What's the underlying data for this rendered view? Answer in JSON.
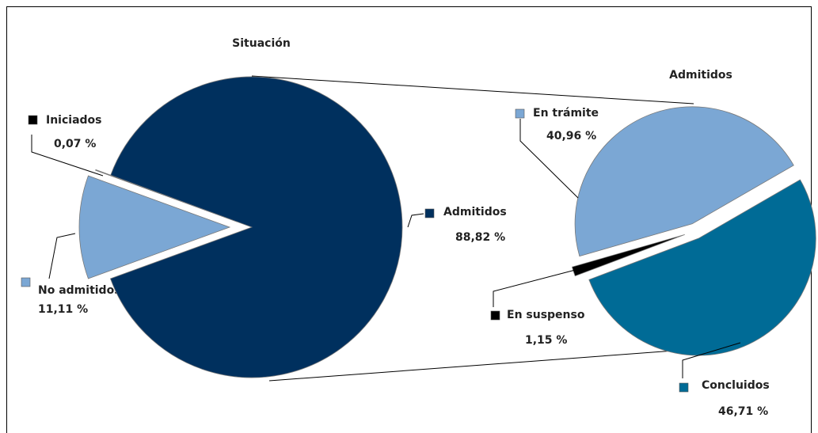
{
  "chart_data": [
    {
      "type": "pie",
      "title": "Situación",
      "categories": [
        "No admitidos",
        "Iniciados",
        "Admitidos"
      ],
      "values": [
        11.11,
        0.07,
        88.82
      ],
      "value_labels": [
        "11,11 %",
        "0,07 %",
        "88,82 %"
      ],
      "colors": [
        "#7ba7d4",
        "#000000",
        "#00305e"
      ]
    },
    {
      "type": "pie",
      "title": "Admitidos",
      "categories": [
        "Concluidos",
        "En suspenso",
        "En trámite"
      ],
      "values": [
        46.71,
        1.15,
        40.96
      ],
      "value_labels": [
        "46,71 %",
        "1,15 %",
        "40,96 %"
      ],
      "colors": [
        "#006b96",
        "#000000",
        "#7ba7d4"
      ]
    }
  ]
}
